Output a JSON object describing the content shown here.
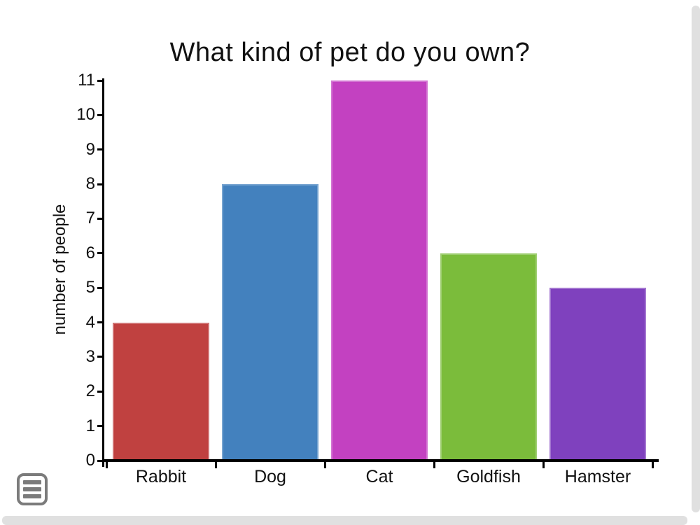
{
  "chart_data": {
    "type": "bar",
    "title": "What kind of pet do you own?",
    "xlabel": "",
    "ylabel": "number of people",
    "categories": [
      "Rabbit",
      "Dog",
      "Cat",
      "Goldfish",
      "Hamster"
    ],
    "values": [
      4,
      8,
      11,
      6,
      5
    ],
    "colors": [
      "#c04140",
      "#4381be",
      "#c341c1",
      "#7bbc3b",
      "#7f41be"
    ],
    "ylim": [
      0,
      11
    ],
    "ytick_step": 1,
    "yticks": [
      0,
      1,
      2,
      3,
      4,
      5,
      6,
      7,
      8,
      9,
      10,
      11
    ],
    "grid": false,
    "legend": false,
    "axis_color": "#000000",
    "text_color": "#111111"
  },
  "ui": {
    "menu_button_icon": "hamburger-list-icon",
    "icon_color": "#7b7b7b",
    "scrollbar_color": "#e0e0e0",
    "background_color": "#ffffff"
  }
}
